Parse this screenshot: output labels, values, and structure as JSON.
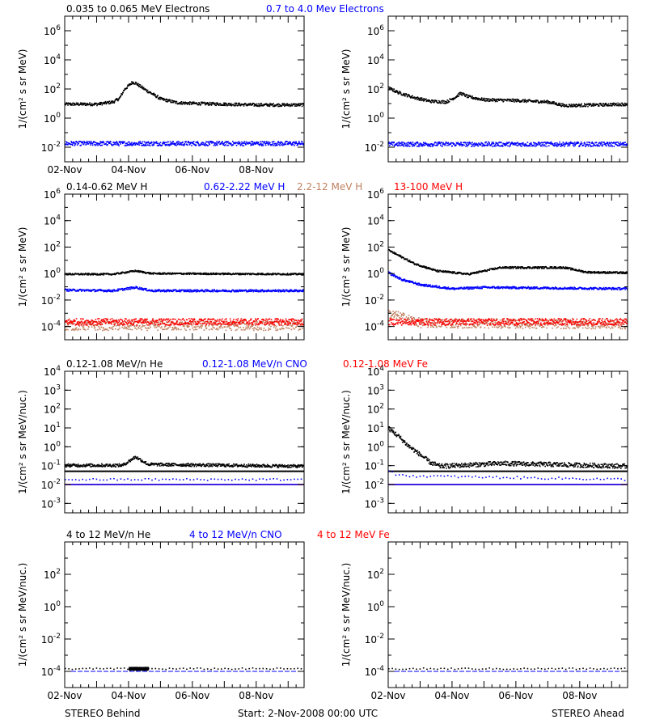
{
  "footer": {
    "left": "STEREO Behind",
    "center": "Start:  2-Nov-2008 00:00 UTC",
    "right": "STEREO Ahead"
  },
  "chart_data": [
    {
      "type": "scatter",
      "panel": "electrons-behind",
      "yscale": "log",
      "ylim_exp": [
        -3,
        7
      ],
      "yticks": [
        [
          "10",
          "-2"
        ],
        [
          "10",
          "0"
        ],
        [
          "10",
          "2"
        ],
        [
          "10",
          "4"
        ],
        [
          "10",
          "6"
        ]
      ],
      "ylabel": "1/(cm² s sr MeV)",
      "legend": [
        {
          "text": "0.035 to 0.065 MeV Electrons",
          "color": "#000000"
        },
        {
          "text": "0.7 to 4.0 Mev Electrons",
          "color": "#0000ff"
        }
      ],
      "xlim_days": [
        0,
        7.5
      ],
      "xticks": [
        "02-Nov",
        "04-Nov",
        "06-Nov",
        "08-Nov"
      ],
      "series": [
        {
          "color": "#000000",
          "points": [
            [
              0,
              1.0
            ],
            [
              1.0,
              1.0
            ],
            [
              1.5,
              1.15
            ],
            [
              1.7,
              1.4
            ],
            [
              1.85,
              2.0
            ],
            [
              2.1,
              2.5
            ],
            [
              2.2,
              2.45
            ],
            [
              2.5,
              2.0
            ],
            [
              3.0,
              1.35
            ],
            [
              3.5,
              1.1
            ],
            [
              4.0,
              1.05
            ],
            [
              5.0,
              1.0
            ],
            [
              6.0,
              0.95
            ],
            [
              7.5,
              0.95
            ]
          ],
          "jitter": 0.1
        },
        {
          "color": "#0000ff",
          "points": [
            [
              0,
              -1.7
            ],
            [
              7.5,
              -1.7
            ]
          ],
          "jitter": 0.15
        }
      ]
    },
    {
      "type": "scatter",
      "panel": "electrons-ahead",
      "yscale": "log",
      "ylim_exp": [
        -3,
        7
      ],
      "yticks": [
        [
          "10",
          "-2"
        ],
        [
          "10",
          "0"
        ],
        [
          "10",
          "2"
        ],
        [
          "10",
          "4"
        ],
        [
          "10",
          "6"
        ]
      ],
      "ylabel": "1/(cm² s sr MeV)",
      "xlim_days": [
        0,
        7.5
      ],
      "xticks": [],
      "series": [
        {
          "color": "#000000",
          "points": [
            [
              0,
              2.1
            ],
            [
              0.3,
              1.8
            ],
            [
              0.8,
              1.45
            ],
            [
              1.3,
              1.2
            ],
            [
              1.8,
              1.15
            ],
            [
              2.1,
              1.5
            ],
            [
              2.25,
              1.75
            ],
            [
              2.5,
              1.5
            ],
            [
              3.0,
              1.3
            ],
            [
              4.0,
              1.25
            ],
            [
              5.0,
              1.15
            ],
            [
              5.5,
              0.9
            ],
            [
              6.5,
              0.95
            ],
            [
              7.5,
              1.0
            ]
          ],
          "jitter": 0.1
        },
        {
          "color": "#0000ff",
          "points": [
            [
              0,
              -1.75
            ],
            [
              7.5,
              -1.75
            ]
          ],
          "jitter": 0.15
        }
      ]
    },
    {
      "type": "scatter",
      "panel": "protons-behind",
      "yscale": "log",
      "ylim_exp": [
        -5,
        6
      ],
      "yticks": [
        [
          "10",
          "-4"
        ],
        [
          "10",
          "-2"
        ],
        [
          "10",
          "0"
        ],
        [
          "10",
          "2"
        ],
        [
          "10",
          "4"
        ],
        [
          "10",
          "6"
        ]
      ],
      "ylabel": "1/(cm² s sr MeV)",
      "legend": [
        {
          "text": "0.14-0.62 MeV H",
          "color": "#000000"
        },
        {
          "text": "0.62-2.22 MeV H",
          "color": "#0000ff"
        },
        {
          "text": "2.2-12 MeV H",
          "color": "#c08060"
        },
        {
          "text": "13-100 MeV H",
          "color": "#ff0000"
        }
      ],
      "xlim_days": [
        0,
        7.5
      ],
      "xticks": [],
      "series": [
        {
          "color": "#c08060",
          "points": [
            [
              0,
              -3.9
            ],
            [
              7.5,
              -3.9
            ]
          ],
          "jitter": 0.35
        },
        {
          "color": "#ff0000",
          "points": [
            [
              0,
              -3.6
            ],
            [
              7.5,
              -3.6
            ]
          ],
          "jitter": 0.25
        },
        {
          "color": "#000000",
          "points": [
            [
              0,
              0.0
            ],
            [
              1.5,
              0.0
            ],
            [
              2.2,
              0.25
            ],
            [
              2.7,
              0.05
            ],
            [
              7.5,
              0.0
            ]
          ],
          "jitter": 0.06
        },
        {
          "color": "#0000ff",
          "points": [
            [
              0,
              -1.2
            ],
            [
              1.5,
              -1.25
            ],
            [
              2.2,
              -1.0
            ],
            [
              2.7,
              -1.25
            ],
            [
              7.5,
              -1.25
            ]
          ],
          "jitter": 0.08
        }
      ]
    },
    {
      "type": "scatter",
      "panel": "protons-ahead",
      "yscale": "log",
      "ylim_exp": [
        -5,
        6
      ],
      "yticks": [
        [
          "10",
          "-4"
        ],
        [
          "10",
          "-2"
        ],
        [
          "10",
          "0"
        ],
        [
          "10",
          "2"
        ],
        [
          "10",
          "4"
        ],
        [
          "10",
          "6"
        ]
      ],
      "ylabel": "1/(cm² s sr MeV)",
      "xlim_days": [
        0,
        7.5
      ],
      "xticks": [],
      "series": [
        {
          "color": "#c08060",
          "points": [
            [
              0,
              -3.0
            ],
            [
              0.5,
              -3.3
            ],
            [
              1.0,
              -3.7
            ],
            [
              7.5,
              -3.8
            ]
          ],
          "jitter": 0.35
        },
        {
          "color": "#ff0000",
          "points": [
            [
              0,
              -3.6
            ],
            [
              7.5,
              -3.6
            ]
          ],
          "jitter": 0.25
        },
        {
          "color": "#000000",
          "points": [
            [
              0,
              1.8
            ],
            [
              0.4,
              1.3
            ],
            [
              0.8,
              0.8
            ],
            [
              1.5,
              0.25
            ],
            [
              2.5,
              0.0
            ],
            [
              3.5,
              0.5
            ],
            [
              5.5,
              0.5
            ],
            [
              6.2,
              0.15
            ],
            [
              7.5,
              0.1
            ]
          ],
          "jitter": 0.07
        },
        {
          "color": "#0000ff",
          "points": [
            [
              0,
              0.1
            ],
            [
              0.4,
              -0.4
            ],
            [
              1.0,
              -0.8
            ],
            [
              2.0,
              -1.1
            ],
            [
              3.0,
              -1.0
            ],
            [
              7.5,
              -1.1
            ]
          ],
          "jitter": 0.08
        }
      ]
    },
    {
      "type": "scatter",
      "panel": "heavy-low-behind",
      "yscale": "log",
      "ylim_exp": [
        -3.5,
        4
      ],
      "yticks": [
        [
          "10",
          "-3"
        ],
        [
          "10",
          "-2"
        ],
        [
          "10",
          "-1"
        ],
        [
          "10",
          "0"
        ],
        [
          "10",
          "1"
        ],
        [
          "10",
          "2"
        ],
        [
          "10",
          "3"
        ],
        [
          "10",
          "4"
        ]
      ],
      "ylabel": "1/(cm² s sr MeV/nuc.)",
      "legend": [
        {
          "text": "0.12-1.08 MeV/n He",
          "color": "#000000"
        },
        {
          "text": "0.12-1.08 MeV/n CNO",
          "color": "#0000ff"
        },
        {
          "text": "0.12-1.08 MeV Fe",
          "color": "#ff0000"
        }
      ],
      "xlim_days": [
        0,
        7.5
      ],
      "xticks": [],
      "baselines": [
        {
          "color": "#000000",
          "exp": -1.3,
          "width": 2
        },
        {
          "color": "#ff0000",
          "exp": -2.0,
          "width": 1.5
        },
        {
          "color": "#0000ff",
          "exp": -2.0,
          "width": 1.5
        }
      ],
      "series": [
        {
          "color": "#000000",
          "points": [
            [
              0,
              -0.95
            ],
            [
              1.8,
              -0.95
            ],
            [
              2.2,
              -0.5
            ],
            [
              2.6,
              -0.9
            ],
            [
              7.5,
              -1.0
            ]
          ],
          "jitter": 0.08
        },
        {
          "color": "#0000ff",
          "points": [
            [
              0,
              -1.7
            ],
            [
              7.5,
              -1.7
            ]
          ],
          "jitter": 0.05,
          "sparse": true
        }
      ]
    },
    {
      "type": "scatter",
      "panel": "heavy-low-ahead",
      "yscale": "log",
      "ylim_exp": [
        -3.5,
        4
      ],
      "yticks": [
        [
          "10",
          "-3"
        ],
        [
          "10",
          "-2"
        ],
        [
          "10",
          "-1"
        ],
        [
          "10",
          "0"
        ],
        [
          "10",
          "1"
        ],
        [
          "10",
          "2"
        ],
        [
          "10",
          "3"
        ],
        [
          "10",
          "4"
        ]
      ],
      "ylabel": "1/(cm² s sr MeV/nuc.)",
      "xlim_days": [
        0,
        7.5
      ],
      "xticks": [],
      "baselines": [
        {
          "color": "#000000",
          "exp": -1.3,
          "width": 2
        },
        {
          "color": "#ff0000",
          "exp": -2.0,
          "width": 1.5
        },
        {
          "color": "#0000ff",
          "exp": -2.0,
          "width": 1.5
        }
      ],
      "series": [
        {
          "color": "#000000",
          "points": [
            [
              0,
              1.0
            ],
            [
              0.3,
              0.6
            ],
            [
              0.6,
              0.1
            ],
            [
              1.0,
              -0.4
            ],
            [
              1.3,
              -0.8
            ],
            [
              1.6,
              -1.0
            ],
            [
              3.5,
              -0.85
            ],
            [
              5.0,
              -0.9
            ],
            [
              7.5,
              -1.0
            ]
          ],
          "jitter": 0.12
        },
        {
          "color": "#0000ff",
          "points": [
            [
              0,
              -1.2
            ],
            [
              0.3,
              -1.5
            ],
            [
              7.5,
              -1.7
            ]
          ],
          "jitter": 0.06,
          "sparse": true
        }
      ]
    },
    {
      "type": "scatter",
      "panel": "heavy-high-behind",
      "yscale": "log",
      "ylim_exp": [
        -5,
        4
      ],
      "yticks": [
        [
          "10",
          "-4"
        ],
        [
          "10",
          "-2"
        ],
        [
          "10",
          "0"
        ],
        [
          "10",
          "2"
        ]
      ],
      "ylabel": "1/(cm² s sr MeV/nuc.)",
      "legend": [
        {
          "text": "4 to 12 MeV/n He",
          "color": "#000000"
        },
        {
          "text": "4 to 12 MeV/n CNO",
          "color": "#0000ff"
        },
        {
          "text": "4 to 12 MeV Fe",
          "color": "#ff0000"
        }
      ],
      "xlim_days": [
        0,
        7.5
      ],
      "xticks": [
        "02-Nov",
        "04-Nov",
        "06-Nov",
        "08-Nov"
      ],
      "baselines": [
        {
          "color": "#0000ff",
          "exp": -4.0,
          "width": 1,
          "dashed": true
        }
      ],
      "series": [
        {
          "color": "#000000",
          "points": [
            [
              0,
              -3.8
            ],
            [
              7.5,
              -3.8
            ]
          ],
          "jitter": 0.05,
          "sparse": true
        },
        {
          "color": "#000000",
          "points": [
            [
              2.0,
              -3.8
            ],
            [
              2.6,
              -3.8
            ]
          ],
          "jitter": 0.08
        }
      ]
    },
    {
      "type": "scatter",
      "panel": "heavy-high-ahead",
      "yscale": "log",
      "ylim_exp": [
        -5,
        4
      ],
      "yticks": [
        [
          "10",
          "-4"
        ],
        [
          "10",
          "-2"
        ],
        [
          "10",
          "0"
        ],
        [
          "10",
          "2"
        ]
      ],
      "ylabel": "1/(cm² s sr MeV/nuc.)",
      "xlim_days": [
        0,
        7.5
      ],
      "xticks": [
        "02-Nov",
        "04-Nov",
        "06-Nov",
        "08-Nov"
      ],
      "baselines": [
        {
          "color": "#0000ff",
          "exp": -4.0,
          "width": 1,
          "dashed": true
        }
      ],
      "series": [
        {
          "color": "#000000",
          "points": [
            [
              0,
              -3.8
            ],
            [
              7.5,
              -3.8
            ]
          ],
          "jitter": 0.05,
          "sparse": true
        }
      ]
    }
  ]
}
